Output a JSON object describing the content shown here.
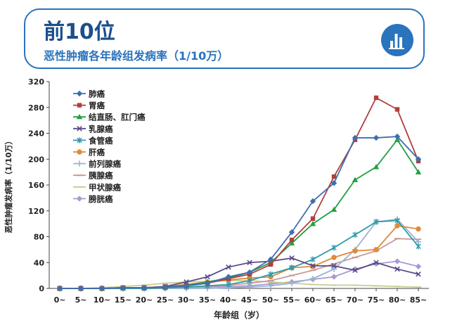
{
  "header": {
    "title": "前10位",
    "subtitle": "恶性肿瘤各年龄组发病率（1/10万）",
    "icon": "bar-chart-icon"
  },
  "colors": {
    "accent": "#2a73bd",
    "title": "#1b4f8c"
  },
  "chart_data": {
    "type": "line",
    "xlabel": "年龄组（岁）",
    "ylabel": "恶性肿瘤发病率（1/10万）",
    "categories": [
      "0~",
      "5~",
      "10~",
      "15~",
      "20~",
      "25~",
      "30~",
      "35~",
      "40~",
      "45~",
      "50~",
      "55~",
      "60~",
      "65~",
      "70~",
      "75~",
      "80~",
      "85~"
    ],
    "ylim": [
      0,
      320
    ],
    "yticks": [
      0,
      40,
      80,
      120,
      160,
      200,
      240,
      280,
      320
    ],
    "grid": false,
    "legend": "top-left",
    "series": [
      {
        "name": "肺癌",
        "color": "#3d6fb0",
        "marker": "diamond",
        "values": [
          0,
          0,
          0,
          1,
          1,
          2,
          4,
          8,
          18,
          25,
          45,
          87,
          135,
          163,
          233,
          233,
          235,
          200
        ]
      },
      {
        "name": "胃癌",
        "color": "#b0403c",
        "marker": "square",
        "values": [
          0,
          0,
          0,
          1,
          1,
          2,
          4,
          8,
          15,
          22,
          37,
          75,
          108,
          173,
          230,
          295,
          277,
          197
        ]
      },
      {
        "name": "结直肠、肛门癌",
        "color": "#22a040",
        "marker": "triangle",
        "values": [
          0,
          0,
          0,
          1,
          1,
          2,
          5,
          10,
          16,
          25,
          40,
          70,
          100,
          122,
          168,
          188,
          230,
          180
        ]
      },
      {
        "name": "乳腺癌",
        "color": "#5b4a8b",
        "marker": "x",
        "values": [
          0,
          0,
          0,
          1,
          1,
          3,
          10,
          18,
          33,
          40,
          42,
          47,
          35,
          35,
          28,
          40,
          30,
          22
        ]
      },
      {
        "name": "食管癌",
        "color": "#2f9aaa",
        "marker": "asterisk",
        "values": [
          0,
          0,
          0,
          0,
          0,
          1,
          2,
          4,
          6,
          12,
          22,
          32,
          45,
          63,
          83,
          103,
          105,
          65
        ]
      },
      {
        "name": "肝癌",
        "color": "#e08a3a",
        "marker": "circle",
        "values": [
          0,
          0,
          0,
          1,
          1,
          3,
          6,
          10,
          13,
          16,
          18,
          32,
          34,
          48,
          58,
          60,
          97,
          92
        ]
      },
      {
        "name": "前列腺癌",
        "color": "#9ab3d6",
        "marker": "plus",
        "values": [
          0,
          0,
          0,
          0,
          0,
          0,
          0,
          0,
          1,
          2,
          4,
          8,
          15,
          30,
          60,
          103,
          107,
          72
        ]
      },
      {
        "name": "胰腺癌",
        "color": "#c79a98",
        "marker": "dash",
        "values": [
          0,
          0,
          0,
          0,
          0,
          1,
          2,
          3,
          5,
          8,
          12,
          20,
          28,
          38,
          48,
          58,
          77,
          76
        ]
      },
      {
        "name": "甲状腺癌",
        "color": "#c9cc92",
        "marker": "dash",
        "values": [
          0,
          0,
          1,
          3,
          5,
          8,
          10,
          11,
          12,
          12,
          10,
          8,
          6,
          5,
          5,
          4,
          3,
          2
        ]
      },
      {
        "name": "膀胱癌",
        "color": "#a89ad0",
        "marker": "diamond",
        "values": [
          0,
          0,
          0,
          0,
          0,
          0,
          1,
          2,
          3,
          4,
          7,
          10,
          14,
          18,
          30,
          38,
          42,
          34
        ]
      }
    ]
  }
}
